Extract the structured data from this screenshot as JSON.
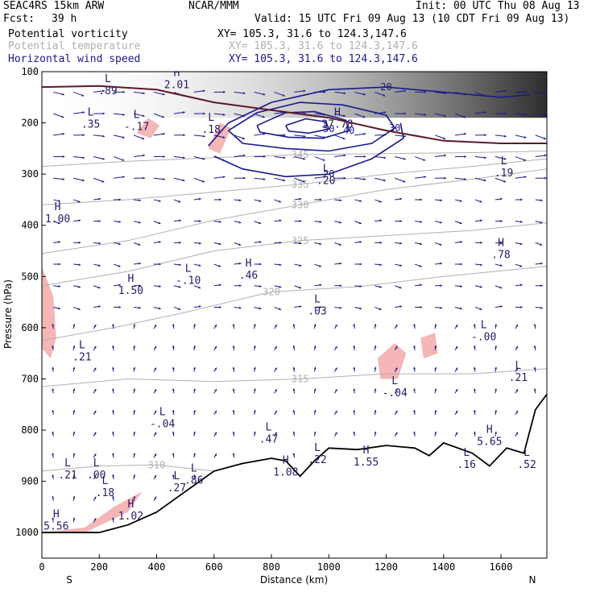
{
  "header": {
    "model": "SEAC4RS 15km ARW",
    "forecast_label": "Fcst:",
    "forecast_value": "39 h",
    "center": "NCAR/MMM",
    "init": "Init: 00 UTC Thu 08 Aug 13",
    "valid": "Valid: 15 UTC Fri 09 Aug 13 (10 CDT Fri 09 Aug 13)"
  },
  "legend": [
    {
      "name": "Potential vorticity",
      "xy": "XY= 105.3, 31.6 to 124.3,147.6",
      "color": "#000000"
    },
    {
      "name": "Potential temperature",
      "xy": "XY= 105.3, 31.6 to 124.3,147.6",
      "color": "#b0b0b0"
    },
    {
      "name": "Horizontal wind speed",
      "xy": "XY= 105.3, 31.6 to 124.3,147.6",
      "color": "#1a1a8c"
    }
  ],
  "chart_data": {
    "type": "cross-section",
    "xlabel": "Distance (km)",
    "ylabel": "Pressure (hPa)",
    "xlim": [
      0,
      1760
    ],
    "ylim": [
      1050,
      100
    ],
    "x_ticks": [
      "0",
      "200",
      "400",
      "600",
      "800",
      "1000",
      "1200",
      "1400",
      "1600"
    ],
    "y_ticks": [
      "100",
      "200",
      "300",
      "400",
      "500",
      "600",
      "700",
      "800",
      "900",
      "1000"
    ],
    "x_end_labels": {
      "left": "S",
      "right": "N"
    },
    "colors": {
      "pv_fill": "#f4b6b6",
      "theta": "#b0b0b0",
      "wind": "#1a1a8c",
      "trop": "#5a1a2a",
      "terrain": "#000000"
    },
    "theta_contours": [
      {
        "label": "310",
        "points": [
          [
            0,
            880
          ],
          [
            200,
            870
          ],
          [
            400,
            868
          ],
          [
            600,
            880
          ]
        ]
      },
      {
        "label": "315",
        "points": [
          [
            0,
            715
          ],
          [
            300,
            700
          ],
          [
            600,
            705
          ],
          [
            900,
            700
          ],
          [
            1200,
            690
          ],
          [
            1500,
            690
          ],
          [
            1760,
            680
          ]
        ]
      },
      {
        "label": "320",
        "points": [
          [
            0,
            625
          ],
          [
            250,
            600
          ],
          [
            500,
            570
          ],
          [
            800,
            530
          ],
          [
            1100,
            520
          ],
          [
            1400,
            500
          ],
          [
            1760,
            480
          ]
        ]
      },
      {
        "label": "325",
        "points": [
          [
            0,
            518
          ],
          [
            300,
            490
          ],
          [
            600,
            450
          ],
          [
            900,
            430
          ],
          [
            1200,
            420
          ],
          [
            1500,
            410
          ],
          [
            1760,
            395
          ]
        ]
      },
      {
        "label": "330",
        "points": [
          [
            0,
            455
          ],
          [
            300,
            430
          ],
          [
            600,
            390
          ],
          [
            900,
            360
          ],
          [
            1200,
            330
          ],
          [
            1500,
            310
          ],
          [
            1760,
            290
          ]
        ]
      },
      {
        "label": "335",
        "points": [
          [
            0,
            360
          ],
          [
            300,
            350
          ],
          [
            600,
            335
          ],
          [
            900,
            320
          ],
          [
            1200,
            300
          ],
          [
            1500,
            285
          ],
          [
            1760,
            270
          ]
        ]
      },
      {
        "label": "345",
        "points": [
          [
            0,
            285
          ],
          [
            300,
            275
          ],
          [
            600,
            268
          ],
          [
            900,
            262
          ],
          [
            1200,
            260
          ],
          [
            1500,
            258
          ],
          [
            1760,
            255
          ]
        ]
      }
    ],
    "wind_contours": [
      {
        "label": "20",
        "points": [
          [
            580,
            245
          ],
          [
            650,
            200
          ],
          [
            800,
            160
          ],
          [
            1000,
            135
          ],
          [
            1200,
            130
          ],
          [
            1400,
            140
          ],
          [
            1600,
            150
          ],
          [
            1700,
            145
          ]
        ]
      },
      {
        "label": "20",
        "points": [
          [
            600,
            265
          ],
          [
            700,
            290
          ],
          [
            850,
            305
          ],
          [
            1000,
            300
          ],
          [
            1150,
            270
          ],
          [
            1260,
            230
          ],
          [
            1250,
            200
          ]
        ]
      },
      {
        "label": "30",
        "points": [
          [
            650,
            215
          ],
          [
            750,
            180
          ],
          [
            900,
            160
          ],
          [
            1050,
            165
          ],
          [
            1200,
            185
          ],
          [
            1230,
            210
          ],
          [
            1150,
            240
          ],
          [
            1000,
            255
          ],
          [
            850,
            250
          ],
          [
            700,
            240
          ],
          [
            650,
            215
          ]
        ]
      },
      {
        "label": "40",
        "points": [
          [
            750,
            205
          ],
          [
            850,
            180
          ],
          [
            950,
            178
          ],
          [
            1060,
            195
          ],
          [
            1070,
            215
          ],
          [
            980,
            230
          ],
          [
            860,
            228
          ],
          [
            760,
            218
          ],
          [
            750,
            205
          ]
        ]
      },
      {
        "label": "50",
        "points": [
          [
            850,
            205
          ],
          [
            920,
            192
          ],
          [
            990,
            198
          ],
          [
            1000,
            212
          ],
          [
            930,
            220
          ],
          [
            860,
            216
          ],
          [
            850,
            205
          ]
        ]
      }
    ],
    "tropopause": {
      "label": "",
      "points": [
        [
          0,
          130
        ],
        [
          200,
          128
        ],
        [
          400,
          135
        ],
        [
          600,
          160
        ],
        [
          800,
          175
        ],
        [
          1000,
          190
        ],
        [
          1200,
          215
        ],
        [
          1400,
          235
        ],
        [
          1600,
          240
        ],
        [
          1760,
          240
        ]
      ]
    },
    "terrain": [
      [
        0,
        1000
      ],
      [
        200,
        1000
      ],
      [
        300,
        985
      ],
      [
        400,
        960
      ],
      [
        500,
        920
      ],
      [
        600,
        880
      ],
      [
        700,
        865
      ],
      [
        800,
        855
      ],
      [
        850,
        860
      ],
      [
        900,
        890
      ],
      [
        950,
        860
      ],
      [
        1000,
        835
      ],
      [
        1100,
        838
      ],
      [
        1200,
        830
      ],
      [
        1300,
        835
      ],
      [
        1350,
        850
      ],
      [
        1400,
        825
      ],
      [
        1500,
        845
      ],
      [
        1560,
        870
      ],
      [
        1620,
        835
      ],
      [
        1680,
        845
      ],
      [
        1720,
        760
      ],
      [
        1760,
        730
      ]
    ],
    "pv_regions": [
      {
        "points": [
          [
            0,
            480
          ],
          [
            40,
            540
          ],
          [
            50,
            620
          ],
          [
            30,
            660
          ],
          [
            0,
            640
          ]
        ]
      },
      {
        "points": [
          [
            330,
            220
          ],
          [
            370,
            190
          ],
          [
            410,
            205
          ],
          [
            380,
            230
          ]
        ]
      },
      {
        "points": [
          [
            580,
            250
          ],
          [
            620,
            200
          ],
          [
            660,
            210
          ],
          [
            620,
            260
          ]
        ]
      },
      {
        "points": [
          [
            1170,
            660
          ],
          [
            1230,
            630
          ],
          [
            1270,
            650
          ],
          [
            1240,
            700
          ],
          [
            1180,
            700
          ]
        ]
      },
      {
        "points": [
          [
            1320,
            620
          ],
          [
            1370,
            610
          ],
          [
            1380,
            650
          ],
          [
            1330,
            660
          ]
        ]
      },
      {
        "points": [
          [
            0,
            1000
          ],
          [
            150,
            990
          ],
          [
            250,
            950
          ],
          [
            350,
            920
          ],
          [
            300,
            960
          ],
          [
            150,
            1000
          ]
        ]
      }
    ],
    "hl_labels": [
      {
        "type": "L",
        "value": ".89",
        "x": 230,
        "y": 130
      },
      {
        "type": "H",
        "value": "2.01",
        "x": 470,
        "y": 118
      },
      {
        "type": "L",
        "value": ".35",
        "x": 170,
        "y": 195
      },
      {
        "type": "L",
        "value": "-.17",
        "x": 330,
        "y": 200
      },
      {
        "type": "L",
        "value": ".18",
        "x": 590,
        "y": 205
      },
      {
        "type": "H",
        "value": "37.78",
        "x": 1030,
        "y": 195
      },
      {
        "type": "L",
        "value": ".19",
        "x": 1610,
        "y": 290
      },
      {
        "type": "H",
        "value": "1.00",
        "x": 55,
        "y": 380
      },
      {
        "type": "L",
        "value": ".20",
        "x": 990,
        "y": 305
      },
      {
        "type": "H",
        "value": ".78",
        "x": 1600,
        "y": 450
      },
      {
        "type": "H",
        "value": "1.50",
        "x": 310,
        "y": 520
      },
      {
        "type": "L",
        "value": "-.10",
        "x": 510,
        "y": 500
      },
      {
        "type": "H",
        "value": ".46",
        "x": 720,
        "y": 490
      },
      {
        "type": "L",
        "value": ".03",
        "x": 960,
        "y": 560
      },
      {
        "type": "L",
        "value": "-.00",
        "x": 1540,
        "y": 610
      },
      {
        "type": "L",
        "value": ".21",
        "x": 140,
        "y": 650
      },
      {
        "type": "L",
        "value": "-.04",
        "x": 1230,
        "y": 720
      },
      {
        "type": "L",
        "value": ".21",
        "x": 1660,
        "y": 690
      },
      {
        "type": "L",
        "value": "-.04",
        "x": 420,
        "y": 780
      },
      {
        "type": "L",
        "value": ".47",
        "x": 790,
        "y": 810
      },
      {
        "type": "L",
        "value": ".22",
        "x": 960,
        "y": 850
      },
      {
        "type": "H",
        "value": "1.55",
        "x": 1130,
        "y": 855
      },
      {
        "type": "H",
        "value": "5.65",
        "x": 1560,
        "y": 815
      },
      {
        "type": "L",
        "value": ".16",
        "x": 1480,
        "y": 860
      },
      {
        "type": "L",
        "value": ".21",
        "x": 90,
        "y": 880
      },
      {
        "type": "L",
        "value": ".00",
        "x": 190,
        "y": 880
      },
      {
        "type": "L",
        "value": ".18",
        "x": 220,
        "y": 915
      },
      {
        "type": "L",
        "value": ".27",
        "x": 470,
        "y": 905
      },
      {
        "type": "L",
        "value": ".86",
        "x": 530,
        "y": 890
      },
      {
        "type": "H",
        "value": "1.08",
        "x": 850,
        "y": 875
      },
      {
        "type": "H",
        "value": "1.02",
        "x": 310,
        "y": 960
      },
      {
        "type": "H",
        "value": "5.56",
        "x": 50,
        "y": 980
      },
      {
        "type": "L",
        "value": ".52",
        "x": 1690,
        "y": 860
      }
    ]
  }
}
